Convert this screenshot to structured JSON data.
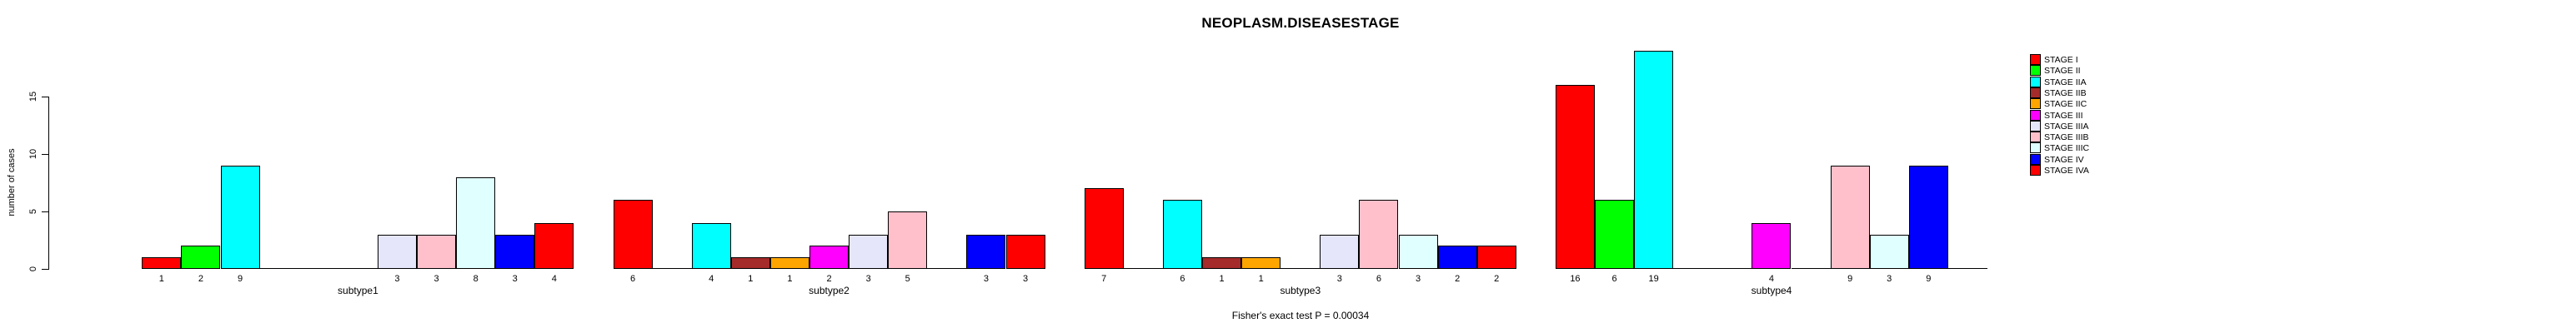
{
  "title": "NEOPLASM.DISEASESTAGE",
  "caption": "Fisher's exact test P = 0.00034",
  "chart_data": {
    "type": "bar",
    "title": "NEOPLASM.DISEASESTAGE",
    "xlabel": "",
    "ylabel": "number of cases",
    "ylim": [
      0,
      15
    ],
    "yticks": [
      0,
      5,
      10,
      15
    ],
    "grid": false,
    "bar_borders": true,
    "value_labels_on_bars": true,
    "legend_position": "right-outside",
    "categories": [
      "subtype1",
      "subtype2",
      "subtype3",
      "subtype4"
    ],
    "series": [
      {
        "name": "STAGE I",
        "color": "#FF0000",
        "values": [
          1,
          6,
          7,
          16
        ]
      },
      {
        "name": "STAGE II",
        "color": "#00FF00",
        "values": [
          2,
          0,
          0,
          6
        ]
      },
      {
        "name": "STAGE IIA",
        "color": "#00FFFF",
        "values": [
          9,
          4,
          6,
          19
        ]
      },
      {
        "name": "STAGE IIB",
        "color": "#A52A2A",
        "values": [
          0,
          1,
          1,
          0
        ]
      },
      {
        "name": "STAGE IIC",
        "color": "#FFA500",
        "values": [
          0,
          1,
          1,
          0
        ]
      },
      {
        "name": "STAGE III",
        "color": "#FF00FF",
        "values": [
          0,
          2,
          0,
          4
        ]
      },
      {
        "name": "STAGE IIIA",
        "color": "#E6E6FA",
        "values": [
          3,
          3,
          3,
          0
        ]
      },
      {
        "name": "STAGE IIIB",
        "color": "#FFC0CB",
        "values": [
          3,
          5,
          6,
          9
        ]
      },
      {
        "name": "STAGE IIIC",
        "color": "#E0FFFF",
        "values": [
          8,
          0,
          3,
          3
        ]
      },
      {
        "name": "STAGE IV",
        "color": "#0000FF",
        "values": [
          3,
          3,
          2,
          9
        ]
      },
      {
        "name": "STAGE IVA",
        "color": "#FF0000",
        "values": [
          4,
          3,
          2,
          0
        ]
      }
    ],
    "annotation": "Fisher's exact test P = 0.00034"
  }
}
